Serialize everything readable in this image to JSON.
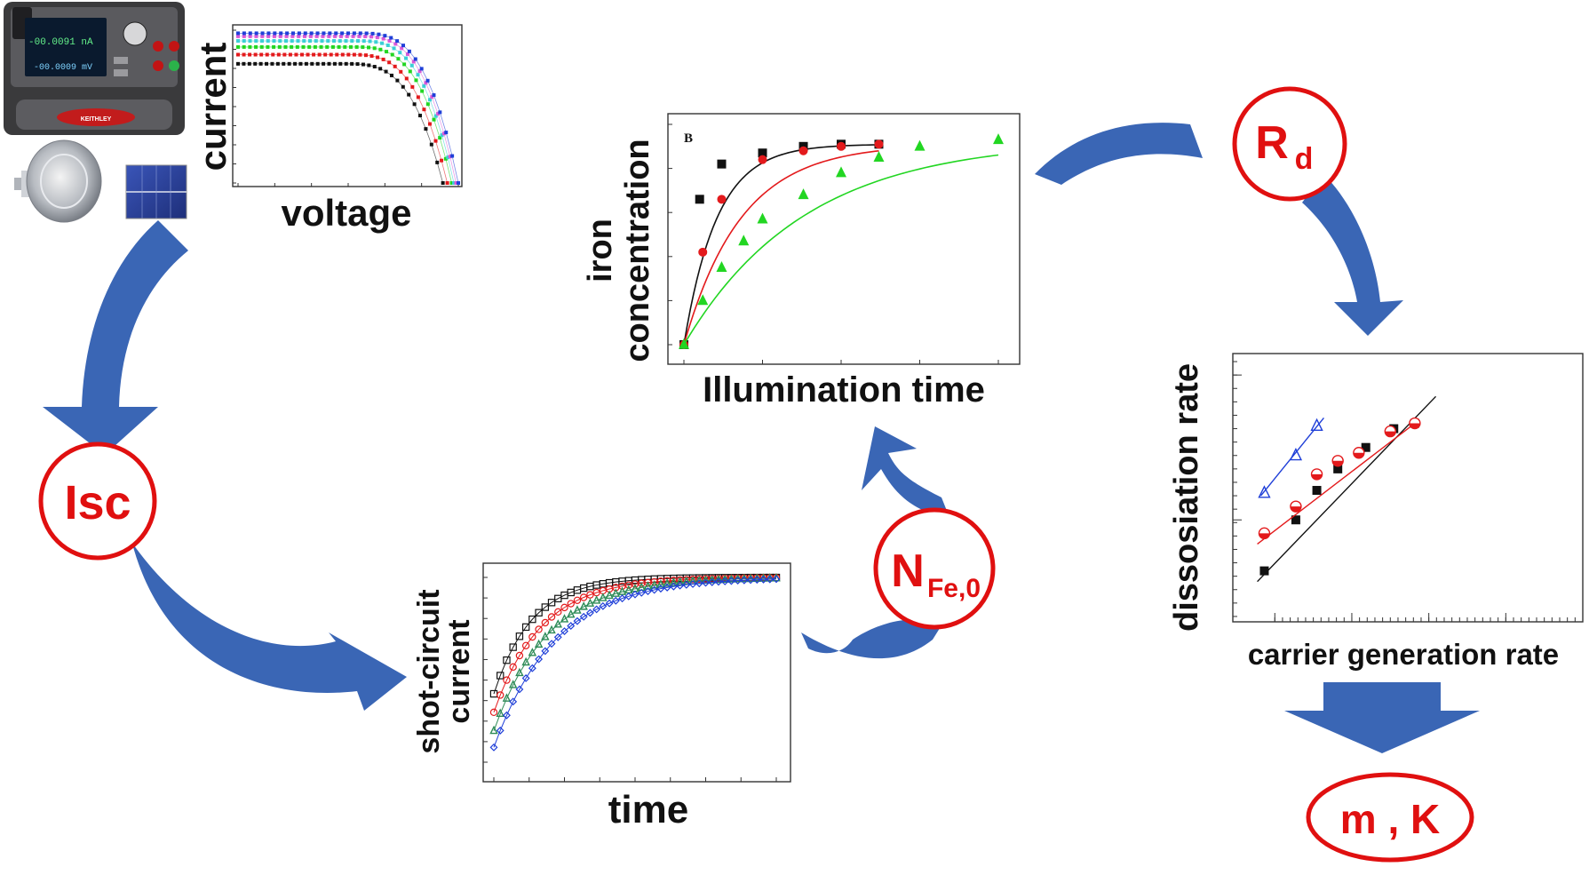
{
  "nodes": {
    "isc": "Isc",
    "rd_main": "R",
    "rd_sub": "d",
    "nfe_main": "N",
    "nfe_sub": "Fe,0",
    "mk": "m , K"
  },
  "instrument": {
    "reading_current": "-00.0091 nA",
    "reading_voltage": "-00.0009 mV",
    "brand": "KEITHLEY"
  },
  "colors": {
    "arrow": "#3a66b5",
    "node": "#e01010",
    "series_black": "#111111",
    "series_red": "#e31a1c",
    "series_green": "#22d622",
    "series_blue": "#1f3fd8",
    "series_magenta": "#d85ad8",
    "series_cyan": "#3ccfd6"
  },
  "chart_data": [
    {
      "id": "iv",
      "type": "scatter",
      "title": "",
      "xlabel": "voltage",
      "ylabel": "current",
      "note": "I-V curves at several light intensities (no numeric tick labels shown)",
      "series": [
        {
          "color": "#111111",
          "plateau": 0.78,
          "knee": 0.8,
          "end": 0.93
        },
        {
          "color": "#e31a1c",
          "plateau": 0.84,
          "knee": 0.83,
          "end": 0.95
        },
        {
          "color": "#22d622",
          "plateau": 0.89,
          "knee": 0.86,
          "end": 0.97
        },
        {
          "color": "#3ccfd6",
          "plateau": 0.93,
          "knee": 0.88,
          "end": 0.98
        },
        {
          "color": "#d85ad8",
          "plateau": 0.96,
          "knee": 0.89,
          "end": 0.99
        },
        {
          "color": "#1f3fd8",
          "plateau": 0.98,
          "knee": 0.9,
          "end": 1.0
        }
      ]
    },
    {
      "id": "iron",
      "type": "scatter",
      "panel_label": "B",
      "xlabel": "Illumination time",
      "ylabel": "iron concentration",
      "series": [
        {
          "marker": "square",
          "color": "#111111",
          "x": [
            0,
            0.05,
            0.12,
            0.25,
            0.38,
            0.5,
            0.62
          ],
          "y": [
            0,
            0.66,
            0.82,
            0.87,
            0.9,
            0.91,
            0.91
          ]
        },
        {
          "marker": "circle",
          "color": "#e31a1c",
          "x": [
            0,
            0.06,
            0.12,
            0.25,
            0.38,
            0.5,
            0.62
          ],
          "y": [
            0,
            0.42,
            0.66,
            0.84,
            0.88,
            0.9,
            0.91
          ]
        },
        {
          "marker": "triangle",
          "color": "#22d622",
          "x": [
            0,
            0.06,
            0.12,
            0.19,
            0.25,
            0.38,
            0.5,
            0.62,
            0.75,
            1.0
          ],
          "y": [
            0,
            0.2,
            0.35,
            0.47,
            0.57,
            0.68,
            0.78,
            0.85,
            0.9,
            0.93
          ]
        }
      ]
    },
    {
      "id": "isc_time",
      "type": "scatter",
      "xlabel": "time",
      "ylabel": "shot-circuit current",
      "series": [
        {
          "color": "#111111",
          "marker": "square",
          "start": 0.37,
          "rate": 7.5
        },
        {
          "color": "#e31a1c",
          "marker": "circle",
          "start": 0.27,
          "rate": 6.0
        },
        {
          "color": "#2e8b57",
          "marker": "triangle",
          "start": 0.17,
          "rate": 5.2
        },
        {
          "color": "#1f3fd8",
          "marker": "diamond",
          "start": 0.08,
          "rate": 4.6
        }
      ]
    },
    {
      "id": "rates",
      "type": "scatter",
      "scale": "log-log",
      "xlabel": "carrier generation rate",
      "ylabel": "dissosiation rate",
      "series": [
        {
          "marker": "square",
          "color": "#111111",
          "x": [
            0.09,
            0.18,
            0.24,
            0.3,
            0.38,
            0.46,
            0.52
          ],
          "y": [
            0.19,
            0.38,
            0.49,
            0.57,
            0.65,
            0.72,
            0.74
          ],
          "fit": [
            [
              0.07,
              0.15
            ],
            [
              0.58,
              0.84
            ]
          ]
        },
        {
          "marker": "half-circle",
          "color": "#e31a1c",
          "x": [
            0.09,
            0.18,
            0.24,
            0.3,
            0.36,
            0.45,
            0.52
          ],
          "y": [
            0.33,
            0.43,
            0.55,
            0.6,
            0.63,
            0.71,
            0.74
          ],
          "fit": [
            [
              0.07,
              0.29
            ],
            [
              0.52,
              0.74
            ]
          ]
        },
        {
          "marker": "open-triangle",
          "color": "#1f3fd8",
          "x": [
            0.09,
            0.18,
            0.24
          ],
          "y": [
            0.48,
            0.62,
            0.73
          ],
          "fit": [
            [
              0.08,
              0.47
            ],
            [
              0.26,
              0.76
            ]
          ]
        }
      ]
    }
  ]
}
